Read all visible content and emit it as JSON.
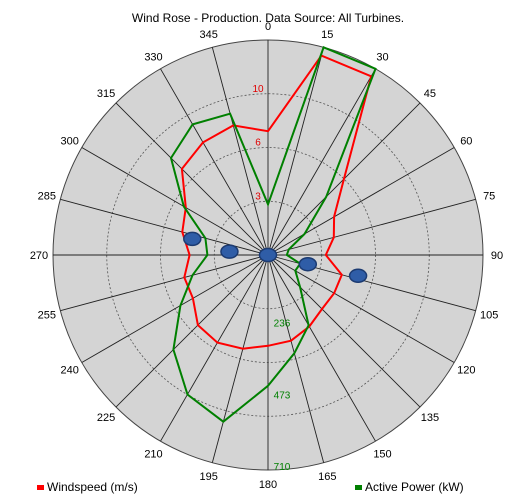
{
  "chart_data": {
    "type": "radar",
    "title": "Wind Rose - Production.    Data Source: All Turbines.",
    "angle_labels": [
      "0",
      "15",
      "30",
      "45",
      "60",
      "75",
      "90",
      "105",
      "120",
      "135",
      "150",
      "165",
      "180",
      "195",
      "210",
      "225",
      "240",
      "255",
      "270",
      "285",
      "300",
      "315",
      "330",
      "345"
    ],
    "radial_ticks_windspeed": [
      "3",
      "6",
      "10"
    ],
    "radial_ticks_power": [
      "236",
      "473",
      "710"
    ],
    "windspeed_max": 10,
    "power_max": 710,
    "series": [
      {
        "name": "Windspeed (m/s)",
        "color": "#ff0000",
        "unit_scale": "windspeed",
        "values": [
          6.0,
          10.0,
          10.0,
          5.2,
          3.7,
          3.3,
          2.8,
          3.7,
          3.7,
          3.7,
          4.0,
          4.3,
          4.4,
          4.7,
          4.9,
          4.8,
          4.2,
          4.2,
          3.8,
          4.3,
          4.6,
          5.9,
          6.3,
          6.5
        ]
      },
      {
        "name": "Active Power (kW)",
        "color": "#008000",
        "unit_scale": "power",
        "values": [
          167,
          710,
          710,
          272,
          139,
          71,
          62,
          110,
          104,
          150,
          268,
          336,
          432,
          570,
          532,
          442,
          334,
          258,
          200,
          214,
          321,
          453,
          498,
          483
        ]
      }
    ],
    "markers": [
      {
        "angle": 282,
        "radius_fraction": 0.36
      },
      {
        "angle": 275,
        "radius_fraction": 0.18
      },
      {
        "angle": 0,
        "radius_fraction": 0.0
      },
      {
        "angle": 103,
        "radius_fraction": 0.19
      },
      {
        "angle": 103,
        "radius_fraction": 0.43
      }
    ],
    "marker_color": "#2f5da7",
    "legend": [
      {
        "label": "Windspeed (m/s)",
        "color": "#ff0000"
      },
      {
        "label": "Active Power (kW)",
        "color": "#008000"
      }
    ],
    "legend_position": "bottom"
  }
}
